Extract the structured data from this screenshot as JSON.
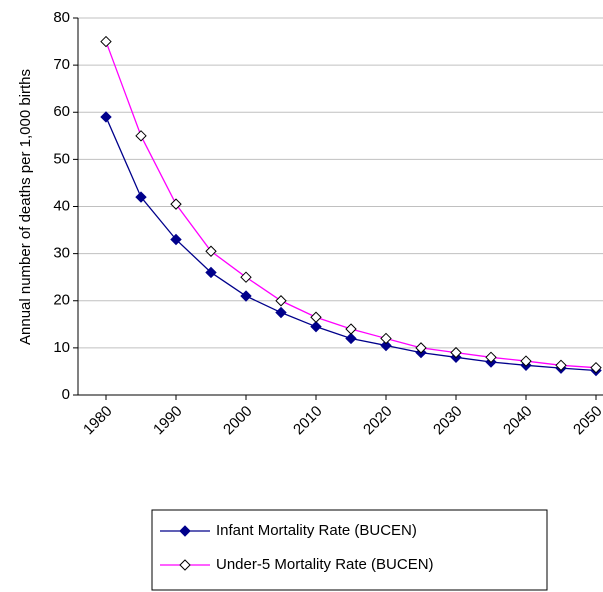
{
  "chart_data": {
    "type": "line",
    "y_label": "Annual number of deaths per 1,000 births",
    "x": [
      1980,
      1985,
      1990,
      1995,
      2000,
      2005,
      2010,
      2015,
      2020,
      2025,
      2030,
      2035,
      2040,
      2045,
      2050
    ],
    "xlim": [
      1976,
      2051
    ],
    "xticks": [
      1980,
      1990,
      2000,
      2010,
      2020,
      2030,
      2040,
      2050
    ],
    "ylim": [
      0,
      80
    ],
    "yticks": [
      0,
      10,
      20,
      30,
      40,
      50,
      60,
      70,
      80
    ],
    "grid": true,
    "legend": "bottom",
    "series": [
      {
        "name": "Infant Mortality Rate (BUCEN)",
        "color": "#00008b",
        "marker": "filled-diamond",
        "values": [
          59,
          42,
          33,
          26,
          21,
          17.5,
          14.5,
          12,
          10.5,
          9,
          8,
          7,
          6.3,
          5.7,
          5.2
        ]
      },
      {
        "name": "Under-5 Mortality Rate (BUCEN)",
        "color": "#ff00ff",
        "marker": "open-diamond",
        "values": [
          75,
          55,
          40.5,
          30.5,
          25,
          20,
          16.5,
          14,
          12,
          10,
          9,
          8,
          7.2,
          6.3,
          5.8
        ]
      }
    ]
  }
}
